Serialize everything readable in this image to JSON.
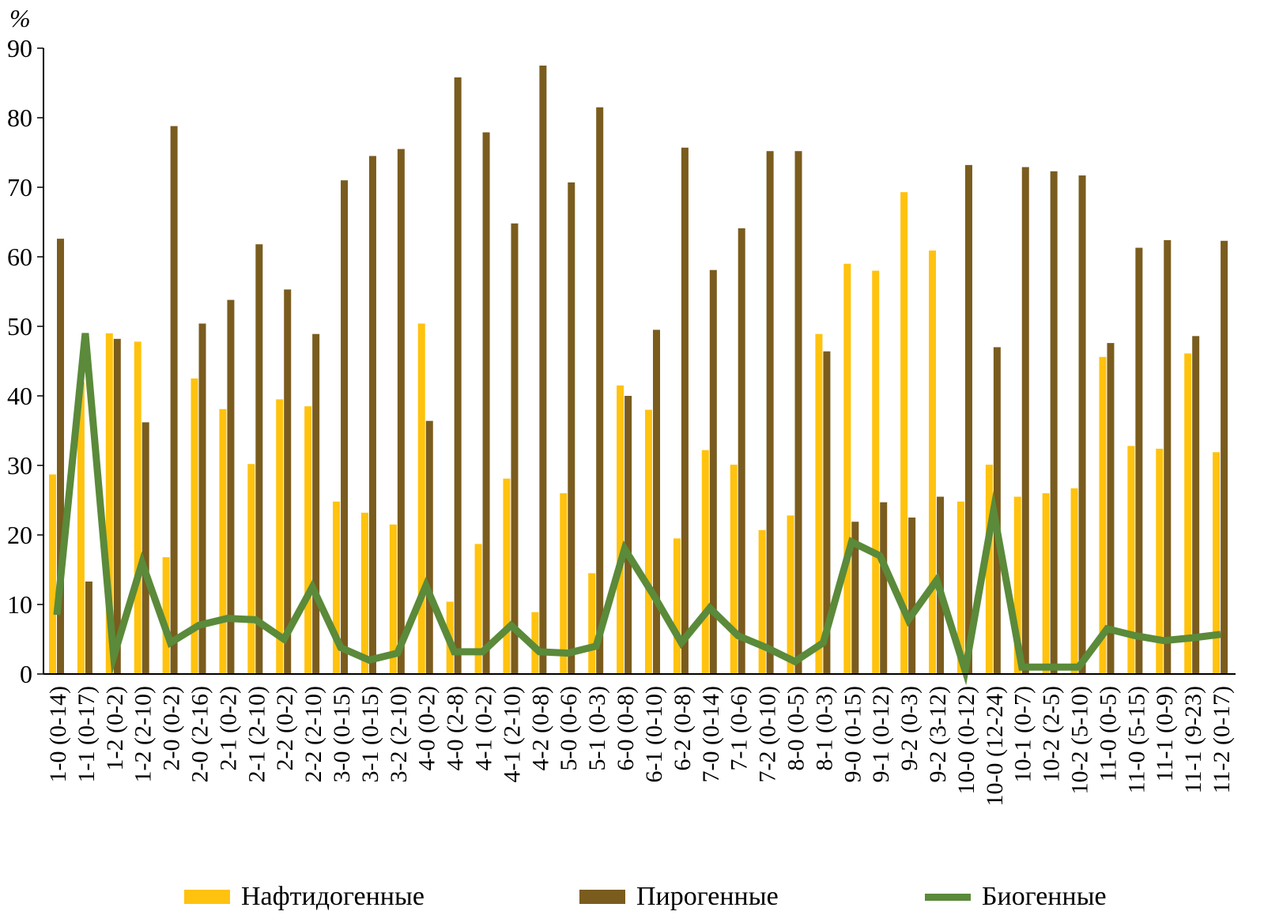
{
  "chart_data": {
    "type": "bar",
    "ylabel": "%",
    "ylim": [
      0,
      90
    ],
    "yticks": [
      "0",
      "10",
      "20",
      "30",
      "40",
      "50",
      "60",
      "70",
      "80",
      "90"
    ],
    "categories": [
      "1-0 (0-14)",
      "1-1 (0-17)",
      "1-2 (0-2)",
      "1-2 (2-10)",
      "2-0 (0-2)",
      "2-0 (2-16)",
      "2-1 (0-2)",
      "2-1 (2-10)",
      "2-2 (0-2)",
      "2-2 (2-10)",
      "3-0 (0-15)",
      "3-1 (0-15)",
      "3-2 (2-10)",
      "4-0 (0-2)",
      "4-0 (2-8)",
      "4-1 (0-2)",
      "4-1 (2-10)",
      "4-2 (0-8)",
      "5-0 (0-6)",
      "5-1 (0-3)",
      "6-0 (0-8)",
      "6-1 (0-10)",
      "6-2 (0-8)",
      "7-0 (0-14)",
      "7-1 (0-6)",
      "7-2 (0-10)",
      "8-0 (0-5)",
      "8-1 (0-3)",
      "9-0 (0-15)",
      "9-1 (0-12)",
      "9-2 (0-3)",
      "9-2 (3-12)",
      "10-0 (0-12)",
      "10-0 (12-24)",
      "10-1 (0-7)",
      "10-2 (2-5)",
      "10-2 (5-10)",
      "11-0 (0-5)",
      "11-0 (5-15)",
      "11-1 (0-9)",
      "11-1 (9-23)",
      "11-2 (0-17)"
    ],
    "series": [
      {
        "name": "Нафтидогенные",
        "kind": "bar",
        "color": "#FFC20E",
        "values": [
          28.7,
          42,
          49,
          47.8,
          16.8,
          42.5,
          38.1,
          30.2,
          39.5,
          38.5,
          24.8,
          23.2,
          21.5,
          50.4,
          10.4,
          18.7,
          28.1,
          8.9,
          26.0,
          14.5,
          41.5,
          38.0,
          19.5,
          32.2,
          30.1,
          20.7,
          22.8,
          48.9,
          59.0,
          58.0,
          69.3,
          60.9,
          24.8,
          30.1,
          25.5,
          26.0,
          26.7,
          45.6,
          32.8,
          32.4,
          46.1,
          31.9
        ]
      },
      {
        "name": "Пирогенные",
        "kind": "bar",
        "color": "#7A5C1E",
        "values": [
          62.6,
          13.3,
          48.2,
          36.2,
          78.8,
          50.4,
          53.8,
          61.8,
          55.3,
          48.9,
          71.0,
          74.5,
          75.5,
          36.4,
          85.8,
          77.9,
          64.8,
          87.5,
          70.7,
          81.5,
          40.0,
          49.5,
          75.7,
          58.1,
          64.1,
          75.2,
          75.2,
          46.4,
          21.9,
          24.7,
          22.5,
          25.5,
          73.2,
          47.0,
          72.9,
          72.3,
          71.7,
          47.6,
          61.3,
          62.4,
          48.6,
          62.3
        ]
      },
      {
        "name": "Биогенные",
        "kind": "line",
        "color": "#5A8A3A",
        "values": [
          8.5,
          49.0,
          2.5,
          16.0,
          4.5,
          7.0,
          8.0,
          7.8,
          5.0,
          12.5,
          3.8,
          2.0,
          3.0,
          12.7,
          3.2,
          3.2,
          7.0,
          3.2,
          3.0,
          4.0,
          18.0,
          11.5,
          4.5,
          9.5,
          5.5,
          3.8,
          1.8,
          4.5,
          19.0,
          17.0,
          7.8,
          13.5,
          0.5,
          23.5,
          1.0,
          1.0,
          1.0,
          6.5,
          5.5,
          4.8,
          5.2,
          5.7
        ]
      }
    ]
  }
}
